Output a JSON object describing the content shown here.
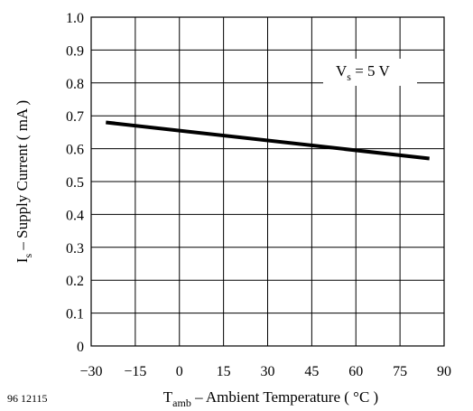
{
  "chart_data": {
    "type": "line",
    "x": [
      -25,
      85
    ],
    "y": [
      0.68,
      0.57
    ],
    "xlim": [
      -30,
      90
    ],
    "ylim": [
      0,
      1.0
    ],
    "xticks": [
      -30,
      -15,
      0,
      15,
      30,
      45,
      60,
      75,
      90
    ],
    "yticks": [
      0,
      0.1,
      0.2,
      0.3,
      0.4,
      0.5,
      0.6,
      0.7,
      0.8,
      0.9,
      1.0
    ],
    "xtick_labels": [
      "−30",
      "−15",
      "0",
      "15",
      "30",
      "45",
      "60",
      "75",
      "90"
    ],
    "ytick_labels": [
      "0",
      "0.1",
      "0.2",
      "0.3",
      "0.4",
      "0.5",
      "0.6",
      "0.7",
      "0.8",
      "0.9",
      "1.0"
    ],
    "xlabel": {
      "sym": "T",
      "sub": "amb",
      "rest": " – Ambient Temperature ( °C )"
    },
    "ylabel": {
      "sym": "I",
      "sub": "s",
      "rest": " – Supply Current ( mA )"
    },
    "annotation": {
      "sym": "V",
      "sub": "s",
      "rest": " = 5 V"
    },
    "grid": true,
    "line_color": "#000000"
  },
  "figure_code": "96 12115"
}
